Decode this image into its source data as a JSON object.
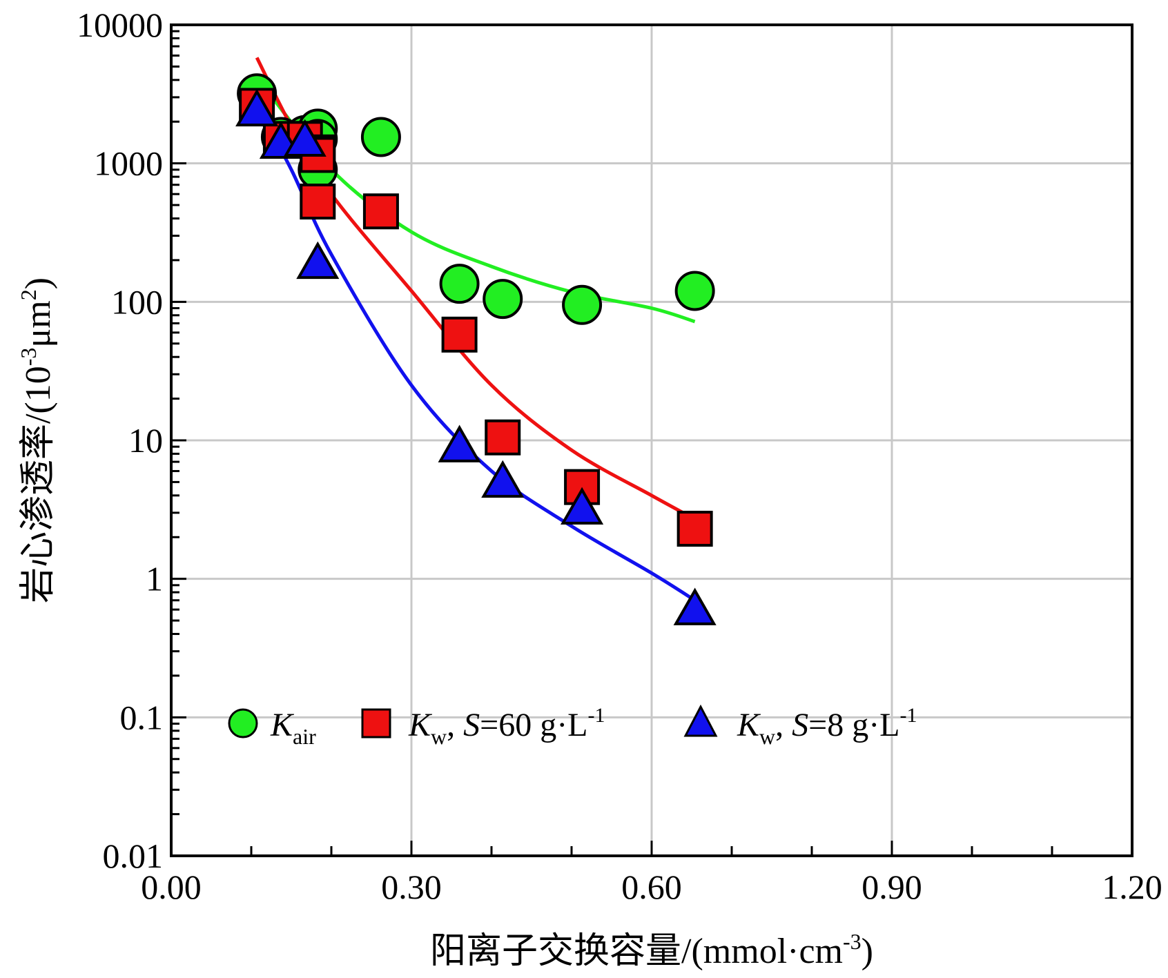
{
  "chart_data": {
    "type": "scatter",
    "xlabel": "阳离子交换容量/(mmol·cm",
    "xlabel_sup": "-3",
    "xlabel_end": ")",
    "ylabel": "岩心渗透率/(10",
    "ylabel_sup": "-3",
    "ylabel_mid": "μm",
    "ylabel_sup2": "2",
    "ylabel_end": ")",
    "xlim": [
      0.0,
      1.2
    ],
    "ylim": [
      0.01,
      10000
    ],
    "y_scale": "log",
    "grid": true,
    "legend_position": "bottom",
    "x_ticks": [
      "0.00",
      "0.30",
      "0.60",
      "0.90",
      "1.20"
    ],
    "x_tick_values": [
      0.0,
      0.3,
      0.6,
      0.9,
      1.2
    ],
    "y_ticks": [
      "0.01",
      "0.1",
      "1",
      "10",
      "100",
      "1000",
      "10000"
    ],
    "y_tick_values": [
      0.01,
      0.1,
      1,
      10,
      100,
      1000,
      10000
    ],
    "series": [
      {
        "name": "K_air",
        "legend_main": "K",
        "legend_sub": "air",
        "marker": "circle",
        "color": "#22ee22",
        "points": [
          [
            0.107,
            3200
          ],
          [
            0.137,
            1550
          ],
          [
            0.167,
            1600
          ],
          [
            0.183,
            1780
          ],
          [
            0.183,
            1500
          ],
          [
            0.183,
            900
          ],
          [
            0.262,
            1550
          ],
          [
            0.36,
            135
          ],
          [
            0.414,
            105
          ],
          [
            0.513,
            95
          ],
          [
            0.654,
            120
          ]
        ],
        "fit": [
          [
            0.107,
            4200
          ],
          [
            0.2,
            900
          ],
          [
            0.3,
            320
          ],
          [
            0.4,
            180
          ],
          [
            0.5,
            118
          ],
          [
            0.6,
            90
          ],
          [
            0.654,
            72
          ]
        ]
      },
      {
        "name": "K_w, S=60 g·L-1",
        "legend_main": "K",
        "legend_sub": "w",
        "legend_rest": ", ",
        "legend_italic": "S",
        "legend_value": "=60 g·L",
        "legend_sup": "-1",
        "marker": "square",
        "color": "#ee1111",
        "points": [
          [
            0.107,
            2600
          ],
          [
            0.137,
            1500
          ],
          [
            0.167,
            1500
          ],
          [
            0.183,
            1200
          ],
          [
            0.183,
            1150
          ],
          [
            0.183,
            530
          ],
          [
            0.262,
            450
          ],
          [
            0.36,
            58
          ],
          [
            0.414,
            10.5
          ],
          [
            0.513,
            4.6
          ],
          [
            0.654,
            2.3
          ]
        ],
        "fit": [
          [
            0.107,
            5800
          ],
          [
            0.15,
            1850
          ],
          [
            0.2,
            600
          ],
          [
            0.3,
            120
          ],
          [
            0.4,
            25
          ],
          [
            0.5,
            8.5
          ],
          [
            0.6,
            4
          ],
          [
            0.654,
            2.7
          ]
        ]
      },
      {
        "name": "K_w, S=8 g·L-1",
        "legend_main": "K",
        "legend_sub": "w",
        "legend_rest": ", ",
        "legend_italic": "S",
        "legend_value": "=8 g·L",
        "legend_sup": "-1",
        "marker": "triangle",
        "color": "#1111ee",
        "points": [
          [
            0.107,
            2400
          ],
          [
            0.137,
            1400
          ],
          [
            0.167,
            1450
          ],
          [
            0.183,
            190
          ],
          [
            0.36,
            9
          ],
          [
            0.414,
            5
          ],
          [
            0.513,
            3.2
          ],
          [
            0.654,
            0.6
          ]
        ],
        "fit": [
          [
            0.107,
            2600
          ],
          [
            0.15,
            900
          ],
          [
            0.2,
            220
          ],
          [
            0.3,
            25
          ],
          [
            0.4,
            6
          ],
          [
            0.5,
            2.4
          ],
          [
            0.6,
            1.1
          ],
          [
            0.654,
            0.7
          ]
        ]
      }
    ]
  }
}
